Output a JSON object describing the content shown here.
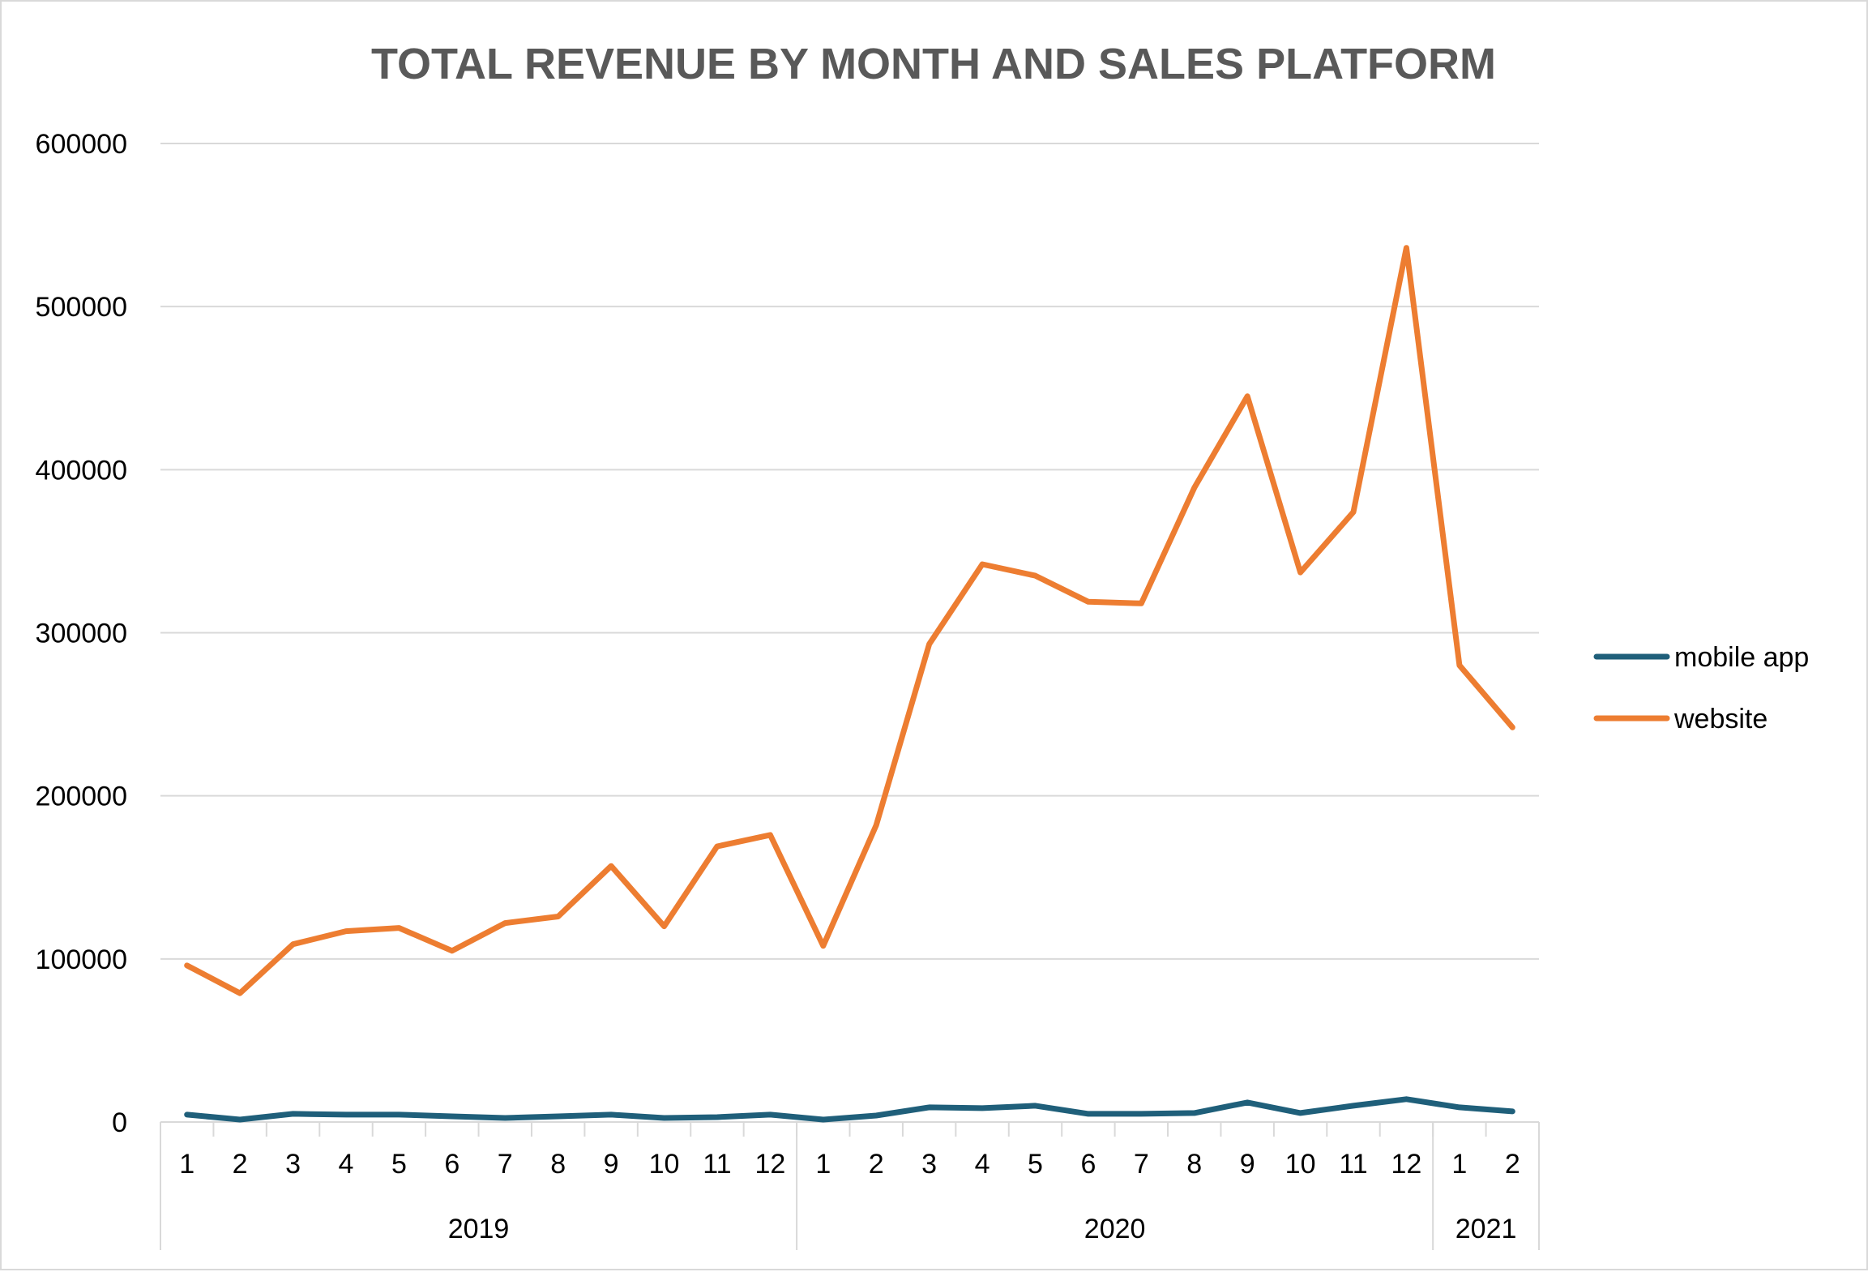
{
  "chart_data": {
    "type": "line",
    "title": "TOTAL REVENUE BY MONTH AND SALES PLATFORM",
    "categories": [
      "1",
      "2",
      "3",
      "4",
      "5",
      "6",
      "7",
      "8",
      "9",
      "10",
      "11",
      "12",
      "1",
      "2",
      "3",
      "4",
      "5",
      "6",
      "7",
      "8",
      "9",
      "10",
      "11",
      "12",
      "1",
      "2"
    ],
    "groups": [
      {
        "label": "2019",
        "count": 12
      },
      {
        "label": "2020",
        "count": 12
      },
      {
        "label": "2021",
        "count": 2
      }
    ],
    "series": [
      {
        "name": "mobile app",
        "color": "#1f5f7a",
        "values": [
          4500,
          1500,
          5000,
          4500,
          4500,
          3500,
          2500,
          3500,
          4500,
          2500,
          3000,
          4500,
          1500,
          4000,
          9000,
          8500,
          10000,
          5000,
          5000,
          5500,
          12000,
          5500,
          10000,
          14000,
          9000,
          6500
        ]
      },
      {
        "name": "website",
        "color": "#ed7d31",
        "values": [
          96000,
          79000,
          109000,
          117000,
          119000,
          105000,
          122000,
          126000,
          157000,
          120000,
          169000,
          176000,
          108000,
          182000,
          293000,
          342000,
          335000,
          319000,
          318000,
          389000,
          445000,
          337000,
          374000,
          536000,
          280000,
          242000
        ]
      }
    ],
    "xlabel": "",
    "ylabel": "",
    "ylim": [
      0,
      600000
    ],
    "yticks": [
      "0",
      "100000",
      "200000",
      "300000",
      "400000",
      "500000",
      "600000"
    ],
    "grid": true,
    "legend_position": "right"
  }
}
